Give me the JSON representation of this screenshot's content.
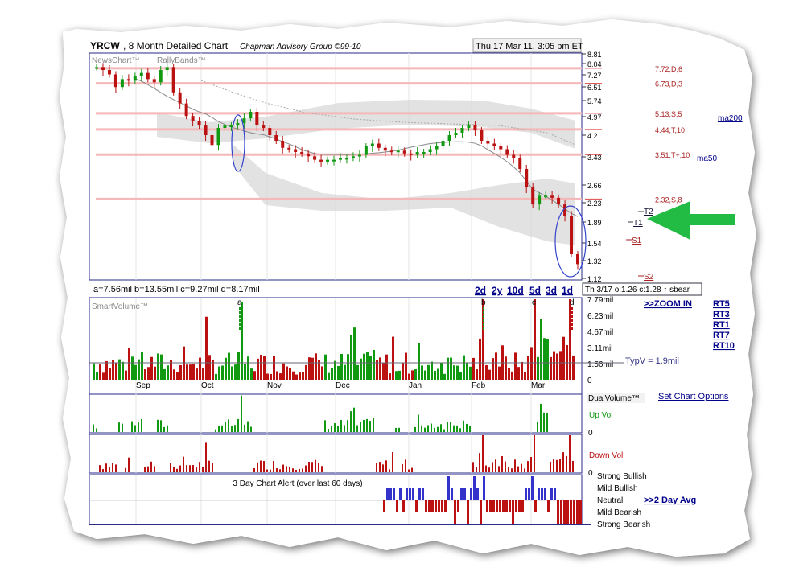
{
  "header": {
    "ticker": "YRCW",
    "period": ", 8 Month Detailed Chart",
    "provider": "Chapman Advisory Group ©99-10",
    "timestamp": "Thu 17 Mar 11, 3:05 pm ET"
  },
  "legend": {
    "newschart": "NewsChart™",
    "rallybands": "RallyBands™"
  },
  "price_axis": {
    "ticks": [
      "8.81",
      "8.04",
      "7.27",
      "6.51",
      "5.74",
      "4.97",
      "4.2",
      "3.43",
      "2.66",
      "2.23",
      "1.89",
      "1.54",
      "1.32",
      "1.12"
    ]
  },
  "levels": [
    {
      "label": "7.72,D,6",
      "price": 7.72
    },
    {
      "label": "6.73,D,3",
      "price": 6.73
    },
    {
      "label": "5.13,S,5",
      "price": 5.13
    },
    {
      "label": "4.44,T,10",
      "price": 4.44
    },
    {
      "label": "3.51,T+,10",
      "price": 3.51
    },
    {
      "label": "2.32,S,8",
      "price": 2.32
    }
  ],
  "targets": {
    "t2": "T2",
    "t1": "T1",
    "s1": "S1",
    "s2": "S2"
  },
  "ma_links": {
    "ma200": "ma200",
    "ma50": "ma50"
  },
  "vol_summary": "a=7.56mil  b=13.55mil  c=9.27mil  d=8.17mil",
  "range_buttons": [
    "2d",
    "2y",
    "10d",
    "5d",
    "3d",
    "1d"
  ],
  "tooltip": "Th 3/17 o:1.26 c:1.28 ↑ sbear",
  "zoom_link": ">>ZOOM IN",
  "rt_links": [
    "RT5",
    "RT3",
    "RT1",
    "RT7",
    "RT10"
  ],
  "smartvolume": {
    "title": "SmartVolume™",
    "ticks": [
      "7.79mil",
      "6.23mil",
      "4.67mil",
      "3.11mil",
      "1.56mil",
      "0"
    ],
    "typv": "TypV = 1.9mil",
    "markers": [
      "a",
      "b",
      "c",
      "d"
    ]
  },
  "months": [
    "Sep",
    "Oct",
    "Nov",
    "Dec",
    "Jan",
    "Feb",
    "Mar"
  ],
  "dualvolume": {
    "title": "DualVolume™",
    "up_label": "Up Vol",
    "down_label": "Down Vol",
    "zero": "0"
  },
  "set_options": "Set Chart Options",
  "alert": {
    "title": "3 Day Chart Alert (over last 60 days)",
    "levels": [
      "Strong Bullish",
      "Mild Bullish",
      "Neutral",
      "Mild Bearish",
      "Strong Bearish"
    ],
    "link": ">>2 Day Avg"
  },
  "colors": {
    "up": "#119911",
    "down": "#bb1111",
    "level_line": "#f4b8b8",
    "band": "#d8d8d8",
    "accent": "#000088",
    "arrow": "#22bb44"
  },
  "chart_data": {
    "type": "candlestick",
    "title": "YRCW , 8 Month Detailed Chart",
    "x_range": [
      "Sep 2010",
      "17 Mar 2011"
    ],
    "y_ticks": [
      8.81,
      8.04,
      7.27,
      6.51,
      5.74,
      4.97,
      4.2,
      3.43,
      2.66,
      2.23,
      1.89,
      1.54,
      1.32,
      1.12
    ],
    "ylim": [
      1.12,
      8.81
    ],
    "price_path": [
      7.8,
      7.6,
      7.3,
      6.5,
      7.0,
      6.9,
      7.2,
      7.4,
      7.0,
      6.8,
      7.6,
      7.8,
      6.2,
      5.6,
      5.0,
      4.8,
      4.6,
      4.2,
      3.85,
      4.5,
      4.6,
      4.6,
      4.7,
      4.9,
      5.2,
      4.6,
      4.5,
      4.2,
      4.0,
      3.75,
      3.7,
      3.6,
      3.55,
      3.45,
      3.35,
      3.3,
      3.35,
      3.35,
      3.4,
      3.4,
      3.45,
      3.5,
      3.8,
      3.9,
      3.75,
      3.65,
      3.6,
      3.65,
      3.55,
      3.5,
      3.6,
      3.6,
      3.7,
      3.8,
      4.0,
      4.2,
      4.3,
      4.5,
      4.6,
      4.4,
      4.0,
      3.9,
      3.8,
      3.7,
      3.5,
      3.4,
      3.1,
      2.6,
      2.2,
      2.4,
      2.4,
      2.35,
      2.2,
      2.0,
      1.4,
      1.28
    ],
    "moving_averages": [
      "ma200",
      "ma50"
    ],
    "volume": {
      "unit": "mil",
      "ylim": [
        0,
        7.79
      ],
      "marked": [
        {
          "label": "a",
          "value": 7.56
        },
        {
          "label": "b",
          "value": 13.55
        },
        {
          "label": "c",
          "value": 9.27
        },
        {
          "label": "d",
          "value": 8.17
        }
      ],
      "typical": 1.9
    }
  }
}
